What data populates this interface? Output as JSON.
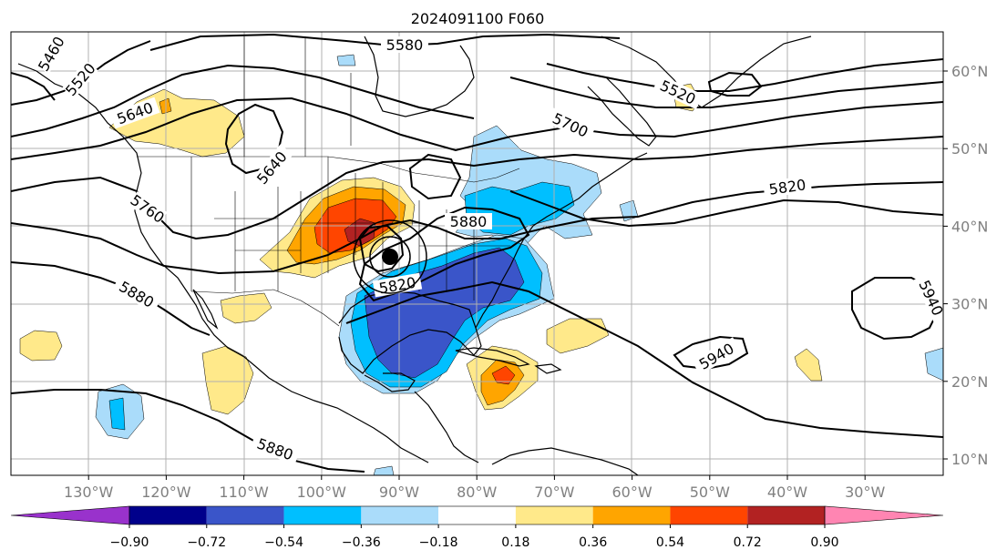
{
  "title": "2024091100 F060",
  "lon_ticks": [
    {
      "value": -130,
      "label": "130°W"
    },
    {
      "value": -120,
      "label": "120°W"
    },
    {
      "value": -110,
      "label": "110°W"
    },
    {
      "value": -100,
      "label": "100°W"
    },
    {
      "value": -90,
      "label": "90°W"
    },
    {
      "value": -80,
      "label": "80°W"
    },
    {
      "value": -70,
      "label": "70°W"
    },
    {
      "value": -60,
      "label": "60°W"
    },
    {
      "value": -50,
      "label": "50°W"
    },
    {
      "value": -40,
      "label": "40°W"
    },
    {
      "value": -30,
      "label": "30°W"
    }
  ],
  "lat_ticks": [
    {
      "value": 60,
      "label": "60°N"
    },
    {
      "value": 50,
      "label": "50°N"
    },
    {
      "value": 40,
      "label": "40°N"
    },
    {
      "value": 30,
      "label": "30°N"
    },
    {
      "value": 20,
      "label": "20°N"
    },
    {
      "value": 10,
      "label": "10°N"
    }
  ],
  "colorbar": {
    "colors": [
      "#9932cc",
      "#00008b",
      "#3a55c9",
      "#00bfff",
      "#aadcfa",
      "#ffffff",
      "#ffe98a",
      "#ffa500",
      "#ff4500",
      "#b22222",
      "#ff85b2"
    ],
    "labels": [
      "−0.90",
      "−0.72",
      "−0.54",
      "−0.36",
      "−0.18",
      "0.18",
      "0.36",
      "0.54",
      "0.72",
      "0.90"
    ]
  },
  "contour_labels": [
    "5460",
    "5520",
    "5580",
    "5640",
    "5640",
    "5520",
    "5700",
    "5760",
    "5820",
    "5880",
    "5880",
    "5820",
    "5880",
    "5940",
    "5940"
  ],
  "colors": {
    "land_line": "#000000",
    "grid": "#b0b0b0",
    "contour": "#000000",
    "marker": "#000000"
  }
}
